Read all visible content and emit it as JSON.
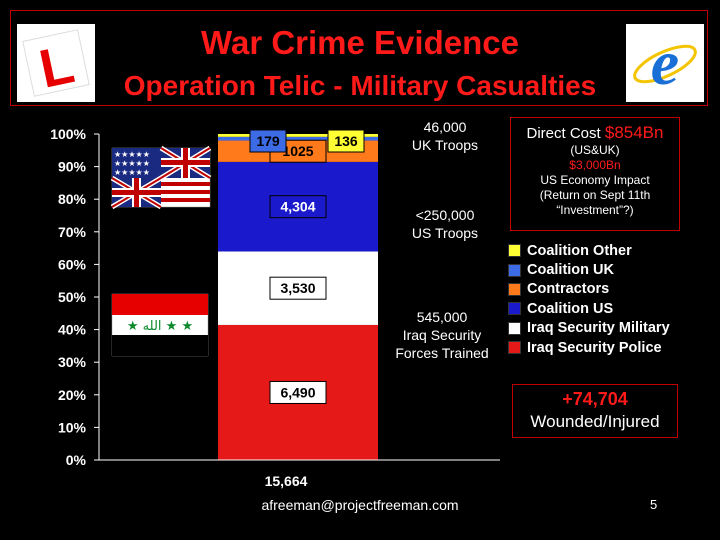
{
  "slide": {
    "title": "War Crime Evidence",
    "subtitle": "Operation Telic - Military Casualties",
    "footer_email": "afreeman@projectfreeman.com",
    "page_number": "5"
  },
  "logos": {
    "left_logo": "L",
    "right_logo": "e"
  },
  "side_notes": {
    "uk_troops_count": "46,000",
    "uk_troops_label": "UK Troops",
    "us_troops_count": "<250,000",
    "us_troops_label": "US Troops",
    "iraq_forces_count": "545,000",
    "iraq_forces_line2": "Iraq Security",
    "iraq_forces_line3": "Forces Trained"
  },
  "cost_box": {
    "label": "Direct Cost",
    "amount": "$854Bn",
    "scope": "(US&UK)",
    "econ_amount": "$3,000Bn",
    "econ_line1": "US Economy Impact",
    "econ_line2": "(Return on Sept 11th",
    "econ_line3": "“Investment”?)"
  },
  "wounded_box": {
    "count": "+74,704",
    "label": "Wounded/Injured"
  },
  "colors": {
    "accent_red": "#ff1a1a",
    "iraq_police": "#e61919",
    "iraq_military": "#ffffff",
    "coalition_us": "#1a1acc",
    "contractors": "#ff7a1a",
    "coalition_uk": "#3d6be6",
    "coalition_other": "#ffff33"
  },
  "chart_data": {
    "type": "bar",
    "stacked": "percent",
    "categories": [
      "15,664"
    ],
    "ylim": [
      0,
      100
    ],
    "yticks": [
      "0%",
      "10%",
      "20%",
      "30%",
      "40%",
      "50%",
      "60%",
      "70%",
      "80%",
      "90%",
      "100%"
    ],
    "series": [
      {
        "name": "Iraq Security Police",
        "values": [
          6490
        ],
        "label": "6,490",
        "color": "#e61919"
      },
      {
        "name": "Iraq Security Military",
        "values": [
          3530
        ],
        "label": "3,530",
        "color": "#ffffff"
      },
      {
        "name": "Coalition US",
        "values": [
          4304
        ],
        "label": "4,304",
        "color": "#1a1acc"
      },
      {
        "name": "Contractors",
        "values": [
          1025
        ],
        "label": "1025",
        "color": "#ff7a1a"
      },
      {
        "name": "Coalition UK",
        "values": [
          179
        ],
        "label": "179",
        "color": "#3d6be6"
      },
      {
        "name": "Coalition Other",
        "values": [
          136
        ],
        "label": "136",
        "color": "#ffff33"
      }
    ],
    "legend_order": [
      "Coalition Other",
      "Coalition UK",
      "Contractors",
      "Coalition US",
      "Iraq Security Military",
      "Iraq Security Police"
    ],
    "legend_position": "right",
    "grid": false
  }
}
